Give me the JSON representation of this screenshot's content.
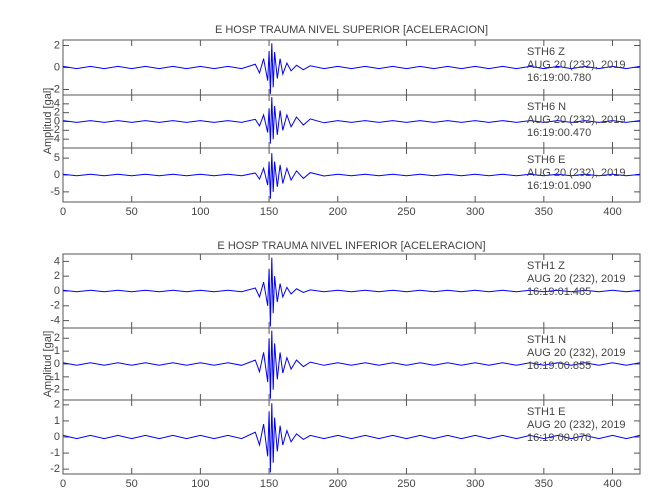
{
  "chart_data": [
    {
      "type": "line",
      "title": "E HOSP TRAUMA NIVEL SUPERIOR [ACELERACION]",
      "y_label": "Amplitud [gal]",
      "xlim": [
        0,
        420
      ],
      "xticks": [
        0,
        50,
        100,
        150,
        200,
        250,
        300,
        350,
        400
      ],
      "x": [
        0,
        10,
        20,
        30,
        40,
        50,
        60,
        70,
        80,
        90,
        100,
        110,
        120,
        130,
        140,
        143,
        146,
        149,
        150,
        151,
        152,
        153,
        154,
        156,
        158,
        160,
        163,
        166,
        170,
        175,
        180,
        190,
        200,
        210,
        220,
        230,
        240,
        250,
        260,
        270,
        280,
        290,
        300,
        310,
        320,
        330,
        340,
        350,
        360,
        370,
        380,
        390,
        400,
        410,
        420
      ],
      "series": [
        {
          "name": "STH6   Z",
          "date": "AUG 20 (232), 2019",
          "time": "16:19:00.780",
          "color": "#0000ff",
          "ylim": [
            -2.5,
            2.5
          ],
          "yticks": [
            -2,
            0,
            2
          ],
          "values": [
            0.1,
            -0.1,
            0.1,
            -0.1,
            0.1,
            -0.1,
            0.1,
            -0.1,
            0.1,
            -0.1,
            0.1,
            -0.1,
            0.1,
            -0.1,
            0.3,
            -0.5,
            0.8,
            -1.2,
            1.5,
            -2.4,
            2.2,
            -1.8,
            1.4,
            -1.0,
            0.8,
            -0.6,
            0.4,
            -0.3,
            0.2,
            -0.2,
            0.15,
            -0.1,
            0.1,
            -0.1,
            0.1,
            -0.1,
            0.1,
            -0.1,
            0.1,
            -0.1,
            0.1,
            -0.1,
            0.1,
            -0.1,
            0.1,
            -0.1,
            0.1,
            -0.1,
            0.1,
            -0.1,
            0.1,
            -0.1,
            0.1,
            -0.1,
            0.1
          ]
        },
        {
          "name": "STH6   N",
          "date": "AUG 20 (232), 2019",
          "time": "16:19:00.470",
          "color": "#0000ff",
          "ylim": [
            -6,
            6
          ],
          "yticks": [
            -4,
            -2,
            0,
            2,
            4
          ],
          "values": [
            0.2,
            -0.2,
            0.2,
            -0.2,
            0.2,
            -0.2,
            0.2,
            -0.2,
            0.2,
            -0.2,
            0.2,
            -0.2,
            0.2,
            -0.2,
            0.5,
            -1,
            1.5,
            -2.5,
            3,
            -5,
            5.5,
            -4,
            3.5,
            -3,
            2.5,
            -2,
            1.5,
            -1.2,
            1,
            -0.8,
            0.6,
            -0.3,
            0.2,
            -0.2,
            0.2,
            -0.2,
            0.2,
            -0.2,
            0.2,
            -0.2,
            0.2,
            -0.2,
            0.2,
            -0.2,
            0.2,
            -0.2,
            0.2,
            -0.2,
            0.2,
            -0.2,
            0.2,
            -0.2,
            0.2,
            -0.2,
            0.2
          ]
        },
        {
          "name": "STH6   E",
          "date": "AUG 20 (232), 2019",
          "time": "16:19:01.090",
          "color": "#0000ff",
          "ylim": [
            -8,
            8
          ],
          "yticks": [
            -5,
            0,
            5
          ],
          "values": [
            0.2,
            -0.2,
            0.2,
            -0.2,
            0.2,
            -0.2,
            0.2,
            -0.2,
            0.2,
            -0.2,
            0.2,
            -0.2,
            0.2,
            -0.2,
            0.6,
            -1.2,
            2,
            -3,
            4,
            -7,
            6.5,
            -5,
            4,
            -3.5,
            3,
            -2.5,
            2,
            -1.5,
            1.2,
            -1,
            0.7,
            -0.3,
            0.2,
            -0.2,
            0.2,
            -0.2,
            0.2,
            -0.2,
            0.2,
            -0.2,
            0.2,
            -0.2,
            0.2,
            -0.2,
            0.2,
            -0.2,
            0.2,
            -0.2,
            0.2,
            -0.2,
            0.2,
            -0.2,
            0.2,
            -0.2,
            0.2
          ]
        }
      ]
    },
    {
      "type": "line",
      "title": "E HOSP TRAUMA NIVEL INFERIOR [ACELERACION]",
      "y_label": "Amplitud [gal]",
      "xlim": [
        0,
        420
      ],
      "xticks": [
        0,
        50,
        100,
        150,
        200,
        250,
        300,
        350,
        400
      ],
      "x": [
        0,
        10,
        20,
        30,
        40,
        50,
        60,
        70,
        80,
        90,
        100,
        110,
        120,
        130,
        140,
        143,
        146,
        149,
        150,
        151,
        152,
        153,
        154,
        156,
        158,
        160,
        163,
        166,
        170,
        175,
        180,
        190,
        200,
        210,
        220,
        230,
        240,
        250,
        260,
        270,
        280,
        290,
        300,
        310,
        320,
        330,
        340,
        350,
        360,
        370,
        380,
        390,
        400,
        410,
        420
      ],
      "series": [
        {
          "name": "STH1   Z",
          "date": "AUG 20 (232), 2019",
          "time": "16:19:01.485",
          "color": "#0000ff",
          "ylim": [
            -5,
            5
          ],
          "yticks": [
            -4,
            -2,
            0,
            2,
            4
          ],
          "values": [
            0.1,
            -0.1,
            0.1,
            -0.1,
            0.1,
            -0.1,
            0.1,
            -0.1,
            0.1,
            -0.1,
            0.1,
            -0.1,
            0.1,
            -0.1,
            0.4,
            -0.8,
            1.2,
            -2,
            3,
            -4.8,
            4.5,
            -3,
            2,
            -1.5,
            1,
            -0.8,
            0.5,
            -0.4,
            0.3,
            -0.2,
            0.15,
            -0.1,
            0.1,
            -0.1,
            0.1,
            -0.1,
            0.1,
            -0.1,
            0.1,
            -0.1,
            0.1,
            -0.1,
            0.1,
            -0.1,
            0.1,
            -0.1,
            0.1,
            -0.1,
            0.1,
            -0.1,
            0.1,
            -0.1,
            0.1,
            -0.1,
            0.1
          ]
        },
        {
          "name": "STH1   N",
          "date": "AUG 20 (232), 2019",
          "time": "16:19:00.855",
          "color": "#0000ff",
          "ylim": [
            -2.8,
            2.8
          ],
          "yticks": [
            -2,
            -1,
            0,
            1,
            2
          ],
          "values": [
            0.1,
            -0.1,
            0.1,
            -0.1,
            0.1,
            -0.1,
            0.1,
            -0.1,
            0.1,
            -0.1,
            0.1,
            -0.1,
            0.1,
            -0.1,
            0.3,
            -0.6,
            0.9,
            -1.4,
            2,
            -2.7,
            2.6,
            -2,
            1.6,
            -1.2,
            0.9,
            -0.7,
            0.5,
            -0.4,
            0.3,
            -0.2,
            0.15,
            -0.1,
            0.1,
            -0.1,
            0.1,
            -0.1,
            0.1,
            -0.1,
            0.1,
            -0.1,
            0.1,
            -0.1,
            0.1,
            -0.1,
            0.1,
            -0.1,
            0.1,
            -0.1,
            0.1,
            -0.1,
            0.1,
            -0.1,
            0.1,
            -0.1,
            0.1
          ]
        },
        {
          "name": "STH1   E",
          "date": "AUG 20 (232), 2019",
          "time": "16:19:00.070",
          "color": "#0000ff",
          "ylim": [
            -2.3,
            2.3
          ],
          "yticks": [
            -2,
            -1,
            0,
            1,
            2
          ],
          "values": [
            0.1,
            -0.1,
            0.1,
            -0.1,
            0.1,
            -0.1,
            0.1,
            -0.1,
            0.1,
            -0.1,
            0.1,
            -0.1,
            0.1,
            -0.1,
            0.3,
            -0.5,
            0.8,
            -1.2,
            1.6,
            -2.2,
            2.1,
            -1.6,
            1.2,
            -0.9,
            0.7,
            -0.5,
            0.4,
            -0.3,
            0.2,
            -0.15,
            0.1,
            -0.1,
            0.1,
            -0.1,
            0.1,
            -0.1,
            0.1,
            -0.1,
            0.1,
            -0.1,
            0.1,
            -0.1,
            0.1,
            -0.1,
            0.1,
            -0.1,
            0.1,
            -0.1,
            0.1,
            -0.1,
            0.1,
            -0.1,
            0.1,
            -0.1,
            0.1
          ]
        }
      ]
    }
  ]
}
